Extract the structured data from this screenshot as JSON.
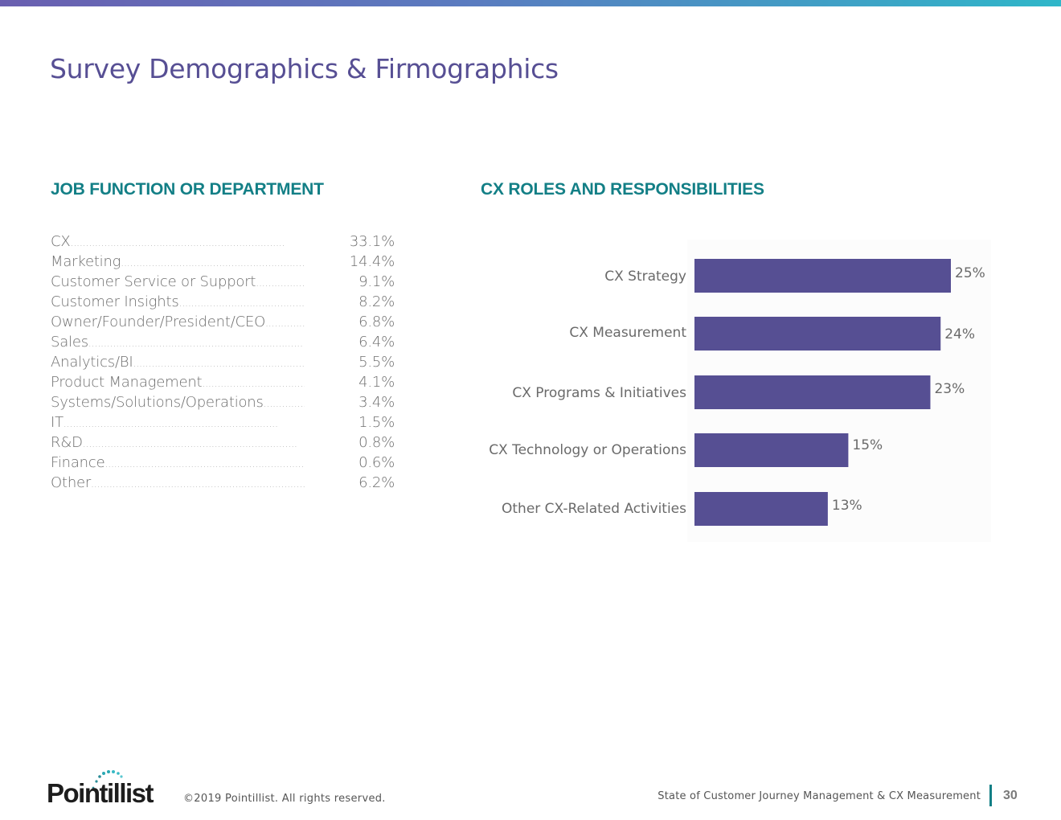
{
  "page": {
    "title": "Survey Demographics & Firmographics",
    "accent_color": "#574f94",
    "heading_color": "#137f86"
  },
  "job_function": {
    "heading": "JOB FUNCTION OR DEPARTMENT",
    "rows": [
      {
        "label": "CX",
        "dots": "......................................................................",
        "value": "33.1%"
      },
      {
        "label": "Marketing",
        "dots": "......................................................................",
        "value": "14.4%"
      },
      {
        "label": "Customer Service or Support",
        "dots": "......................................................................",
        "value": "9.1%"
      },
      {
        "label": "Customer Insights",
        "dots": "......................................................................",
        "value": "8.2%"
      },
      {
        "label": "Owner/Founder/President/CEO",
        "dots": "......................................................................",
        "value": "6.8%"
      },
      {
        "label": "Sales",
        "dots": "......................................................................",
        "value": "6.4%"
      },
      {
        "label": "Analytics/BI",
        "dots": "......................................................................",
        "value": "5.5%"
      },
      {
        "label": "Product Management",
        "dots": "......................................................................",
        "value": "4.1%"
      },
      {
        "label": "Systems/Solutions/Operations",
        "dots": "......................................................................",
        "value": "3.4%"
      },
      {
        "label": "IT",
        "dots": "......................................................................",
        "value": "1.5%"
      },
      {
        "label": "R&D",
        "dots": "......................................................................",
        "value": "0.8%"
      },
      {
        "label": "Finance",
        "dots": "......................................................................",
        "value": "0.6%"
      },
      {
        "label": "Other",
        "dots": "......................................................................",
        "value": "6.2%"
      }
    ]
  },
  "cx_roles": {
    "heading": "CX ROLES AND RESPONSIBILITIES"
  },
  "chart_data": {
    "type": "bar",
    "orientation": "horizontal",
    "title": "CX ROLES AND RESPONSIBILITIES",
    "categories": [
      "CX Strategy",
      "CX Measurement",
      "CX Programs & Initiatives",
      "CX Technology or Operations",
      "Other CX-Related Activities"
    ],
    "values": [
      25,
      24,
      23,
      15,
      13
    ],
    "data_labels": [
      "25%",
      "24%",
      "23%",
      "15%",
      "13%"
    ],
    "xlim": [
      0,
      28
    ],
    "xlabel": "",
    "ylabel": "",
    "grid": false,
    "bar_color": "#564f93"
  },
  "footer": {
    "logo_text": "Pointillist",
    "copyright": "©2019 Pointillist. All rights reserved.",
    "report_title": "State of Customer Journey Management & CX Measurement",
    "page_number": "30"
  }
}
